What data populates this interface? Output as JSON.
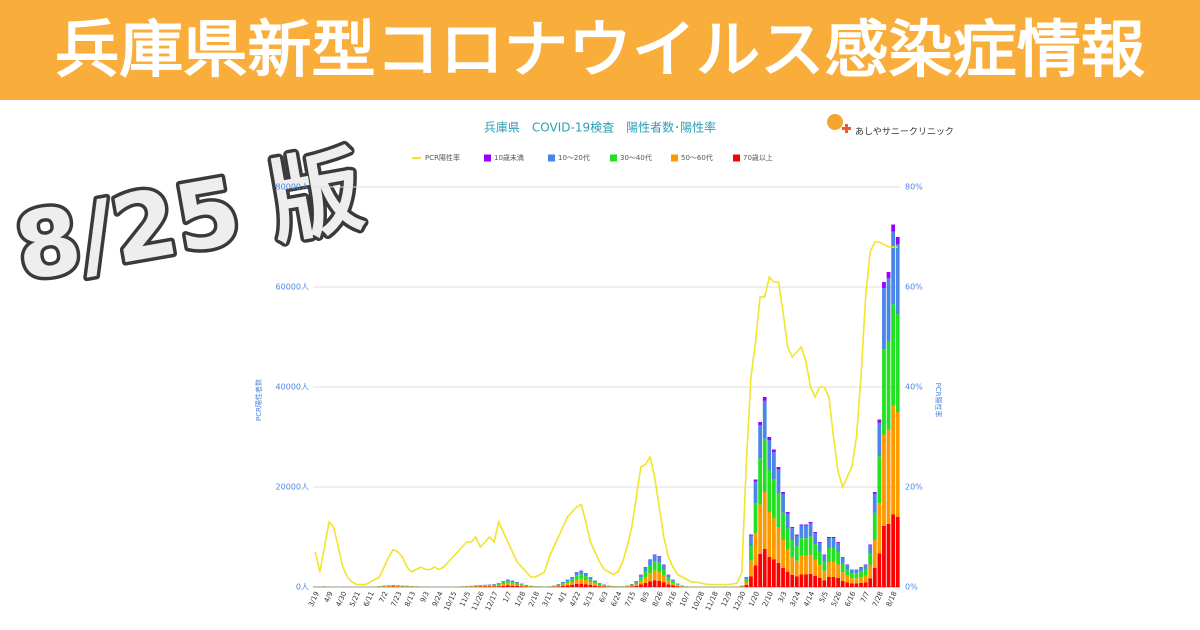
{
  "header": {
    "title": "兵庫県新型コロナウイルス感染症情報"
  },
  "badge": "8/25 版",
  "logo": "あしやサニークリニック",
  "chart_data": {
    "type": "bar",
    "stacked": true,
    "title": "兵庫県　COVID-19検査　陽性者数･陽性率",
    "ylabel": "PCR陽性者数",
    "y2label": "PCR陽性率",
    "grid": true,
    "legend": "top",
    "ylim": [
      0,
      80000
    ],
    "yticks": [
      {
        "value": 0,
        "label": "0人"
      },
      {
        "value": 20000,
        "label": "20000人"
      },
      {
        "value": 40000,
        "label": "40000人"
      },
      {
        "value": 60000,
        "label": "60000人"
      },
      {
        "value": 80000,
        "label": "80000人"
      }
    ],
    "y2lim": [
      0,
      80
    ],
    "y2ticks": [
      {
        "value": 0,
        "label": "0%"
      },
      {
        "value": 20,
        "label": "20%"
      },
      {
        "value": 40,
        "label": "40%"
      },
      {
        "value": 60,
        "label": "60%"
      },
      {
        "value": 80,
        "label": "80%"
      }
    ],
    "categories": [
      "3/19",
      null,
      null,
      "4/9",
      null,
      null,
      "4/30",
      null,
      null,
      "5/21",
      null,
      null,
      "6/11",
      null,
      null,
      "7/2",
      null,
      null,
      "7/23",
      null,
      null,
      "8/13",
      null,
      null,
      "9/3",
      null,
      null,
      "9/24",
      null,
      null,
      "10/15",
      null,
      null,
      "11/5",
      null,
      null,
      "11/26",
      null,
      null,
      "12/17",
      null,
      null,
      "1/7",
      null,
      null,
      "1/28",
      null,
      null,
      "2/18",
      null,
      null,
      "3/11",
      null,
      null,
      "4/1",
      null,
      null,
      "4/22",
      null,
      null,
      "5/13",
      null,
      null,
      "6/3",
      null,
      null,
      "6/24",
      null,
      null,
      "7/15",
      null,
      null,
      "8/5",
      null,
      null,
      "8/26",
      null,
      null,
      "9/16",
      null,
      null,
      "10/7",
      null,
      null,
      "10/28",
      null,
      null,
      "11/18",
      null,
      null,
      "12/9",
      null,
      null,
      "12/30",
      null,
      null,
      "1/20",
      null,
      null,
      "2/10",
      null,
      null,
      "3/3",
      null,
      null,
      "3/24",
      null,
      null,
      "4/14",
      null,
      null,
      "5/5",
      null,
      null,
      "5/26",
      null,
      null,
      "6/16",
      null,
      null,
      "7/7",
      null,
      null,
      "7/28",
      null,
      null,
      "8/18",
      null
    ],
    "series": [
      {
        "name": "PCR陽性率",
        "type": "line",
        "axis": "y2",
        "color": "#f2e42a",
        "values": [
          7,
          3,
          8,
          13,
          12,
          8,
          4,
          2,
          1,
          0.5,
          0.5,
          0.5,
          1,
          1.5,
          2,
          4,
          6,
          7.5,
          7,
          6,
          4,
          3,
          3.5,
          4,
          3.5,
          3.5,
          4,
          3.5,
          4,
          5,
          6,
          7,
          8,
          9,
          9,
          10,
          8,
          9,
          10,
          9,
          13,
          11,
          9,
          7,
          5,
          4,
          3,
          2,
          2,
          2.5,
          3,
          6,
          8,
          10,
          12,
          14,
          15,
          16,
          16.5,
          13,
          9,
          7,
          5,
          3.5,
          3,
          2.5,
          3,
          5,
          8,
          12,
          18,
          24,
          24.5,
          26,
          22,
          16,
          10,
          6,
          4,
          2.5,
          2,
          1.5,
          1,
          1,
          0.8,
          0.6,
          0.5,
          0.5,
          0.5,
          0.5,
          0.5,
          0.6,
          0.8,
          3,
          25,
          42,
          49,
          58,
          58,
          62,
          61,
          61,
          55,
          48,
          46,
          47,
          48,
          45,
          40,
          38,
          40,
          40,
          38,
          30,
          23,
          20,
          22,
          24,
          30,
          42,
          58,
          67,
          69,
          69,
          68.5,
          68,
          68,
          68
        ]
      },
      {
        "name": "10歳未満",
        "color": "#9900ff",
        "values": [
          1,
          2,
          3,
          2,
          0,
          0,
          0,
          0,
          0,
          0,
          0,
          0,
          1,
          2,
          4,
          6,
          7,
          8,
          7,
          6,
          5,
          4,
          3,
          2,
          2,
          1,
          1,
          1,
          1,
          1,
          2,
          2,
          3,
          4,
          5,
          7,
          8,
          9,
          10,
          12,
          16,
          24,
          30,
          26,
          20,
          14,
          8,
          5,
          3,
          3,
          2,
          3,
          6,
          12,
          20,
          30,
          40,
          60,
          66,
          56,
          40,
          26,
          16,
          10,
          6,
          4,
          3,
          3,
          6,
          12,
          24,
          50,
          80,
          110,
          130,
          124,
          90,
          50,
          30,
          14,
          6,
          3,
          2,
          1,
          1,
          0,
          0,
          0,
          0,
          0,
          0,
          1,
          1,
          6,
          40,
          210,
          430,
          660,
          760,
          600,
          550,
          480,
          380,
          300,
          240,
          210,
          250,
          250,
          260,
          220,
          180,
          130,
          200,
          200,
          180,
          120,
          90,
          70,
          70,
          80,
          90,
          170,
          380,
          670,
          1220,
          1260,
          1450,
          1400
        ]
      },
      {
        "name": "10〜20代",
        "color": "#4a86e8",
        "values": [
          10,
          20,
          30,
          20,
          4,
          2,
          1,
          1,
          1,
          1,
          2,
          4,
          10,
          20,
          40,
          60,
          70,
          80,
          70,
          60,
          50,
          40,
          30,
          20,
          16,
          12,
          10,
          10,
          8,
          12,
          16,
          20,
          30,
          40,
          50,
          70,
          80,
          90,
          100,
          120,
          160,
          240,
          300,
          260,
          200,
          140,
          80,
          50,
          30,
          30,
          20,
          30,
          60,
          120,
          200,
          300,
          400,
          600,
          660,
          560,
          400,
          260,
          160,
          100,
          60,
          40,
          30,
          30,
          60,
          120,
          240,
          500,
          800,
          1100,
          1300,
          1240,
          900,
          500,
          300,
          140,
          60,
          30,
          16,
          8,
          6,
          4,
          4,
          4,
          4,
          4,
          4,
          6,
          12,
          60,
          400,
          2100,
          4300,
          6600,
          7600,
          6000,
          5500,
          4800,
          3800,
          3000,
          2400,
          2100,
          2500,
          2500,
          2600,
          2200,
          1800,
          1300,
          2000,
          2000,
          1800,
          1200,
          900,
          700,
          700,
          800,
          900,
          1700,
          3800,
          6700,
          12200,
          12600,
          14500,
          14000
        ]
      },
      {
        "name": "30〜40代",
        "color": "#22e022",
        "values": [
          14,
          28,
          42,
          28,
          6,
          3,
          1,
          1,
          1,
          1,
          3,
          6,
          14,
          28,
          56,
          84,
          98,
          112,
          98,
          84,
          70,
          56,
          42,
          28,
          22,
          17,
          14,
          14,
          11,
          17,
          22,
          28,
          42,
          56,
          70,
          98,
          112,
          126,
          140,
          168,
          224,
          336,
          420,
          364,
          280,
          196,
          112,
          70,
          42,
          42,
          28,
          42,
          84,
          168,
          280,
          420,
          560,
          840,
          924,
          784,
          560,
          364,
          224,
          140,
          84,
          56,
          42,
          42,
          84,
          168,
          336,
          700,
          1120,
          1540,
          1820,
          1736,
          1260,
          700,
          420,
          196,
          84,
          42,
          22,
          11,
          8,
          6,
          6,
          6,
          6,
          6,
          6,
          8,
          17,
          84,
          560,
          2940,
          6020,
          9240,
          10640,
          8400,
          7700,
          6720,
          5320,
          4200,
          3360,
          2940,
          3500,
          3500,
          3640,
          3080,
          2520,
          1820,
          2800,
          2800,
          2520,
          1680,
          1260,
          980,
          980,
          1120,
          1260,
          2380,
          5320,
          9380,
          17080,
          17640,
          20300,
          19600
        ]
      },
      {
        "name": "50〜60代",
        "color": "#ff9900",
        "values": [
          15,
          30,
          45,
          30,
          6,
          3,
          2,
          2,
          2,
          2,
          3,
          6,
          15,
          30,
          60,
          90,
          105,
          120,
          105,
          90,
          75,
          60,
          45,
          30,
          24,
          18,
          15,
          15,
          12,
          18,
          24,
          30,
          45,
          60,
          75,
          105,
          120,
          135,
          150,
          180,
          240,
          360,
          450,
          390,
          300,
          210,
          120,
          75,
          45,
          45,
          30,
          45,
          90,
          180,
          300,
          450,
          600,
          900,
          990,
          840,
          600,
          390,
          240,
          150,
          90,
          60,
          45,
          45,
          90,
          180,
          360,
          750,
          1200,
          1650,
          1950,
          1860,
          1350,
          750,
          450,
          210,
          90,
          45,
          24,
          12,
          9,
          6,
          6,
          6,
          6,
          6,
          6,
          9,
          18,
          90,
          600,
          3150,
          6450,
          9900,
          11400,
          9000,
          8250,
          7200,
          5700,
          4500,
          3600,
          3150,
          3750,
          3750,
          3900,
          3300,
          2700,
          1950,
          3000,
          3000,
          2700,
          1800,
          1350,
          1050,
          1050,
          1200,
          1350,
          2550,
          5700,
          10050,
          18300,
          18900,
          21750,
          21000
        ]
      },
      {
        "name": "70歳以上",
        "color": "#ff0000",
        "values": [
          10,
          20,
          30,
          20,
          4,
          2,
          1,
          1,
          1,
          1,
          2,
          4,
          10,
          20,
          40,
          60,
          70,
          80,
          70,
          60,
          50,
          40,
          30,
          20,
          16,
          12,
          10,
          10,
          8,
          12,
          16,
          20,
          30,
          40,
          50,
          70,
          80,
          90,
          100,
          120,
          160,
          240,
          300,
          260,
          200,
          140,
          80,
          50,
          30,
          30,
          20,
          30,
          60,
          120,
          200,
          300,
          400,
          600,
          660,
          560,
          400,
          260,
          160,
          100,
          60,
          40,
          30,
          30,
          60,
          120,
          240,
          500,
          800,
          1100,
          1300,
          1240,
          900,
          500,
          300,
          140,
          60,
          30,
          16,
          8,
          6,
          4,
          4,
          4,
          4,
          4,
          4,
          6,
          12,
          60,
          400,
          2100,
          4300,
          6600,
          7600,
          6000,
          5500,
          4800,
          3800,
          3000,
          2400,
          2100,
          2500,
          2500,
          2600,
          2200,
          1800,
          1300,
          2000,
          2000,
          1800,
          1200,
          900,
          700,
          700,
          800,
          900,
          1700,
          3800,
          6700,
          12200,
          12600,
          14500,
          14000
        ]
      }
    ]
  }
}
